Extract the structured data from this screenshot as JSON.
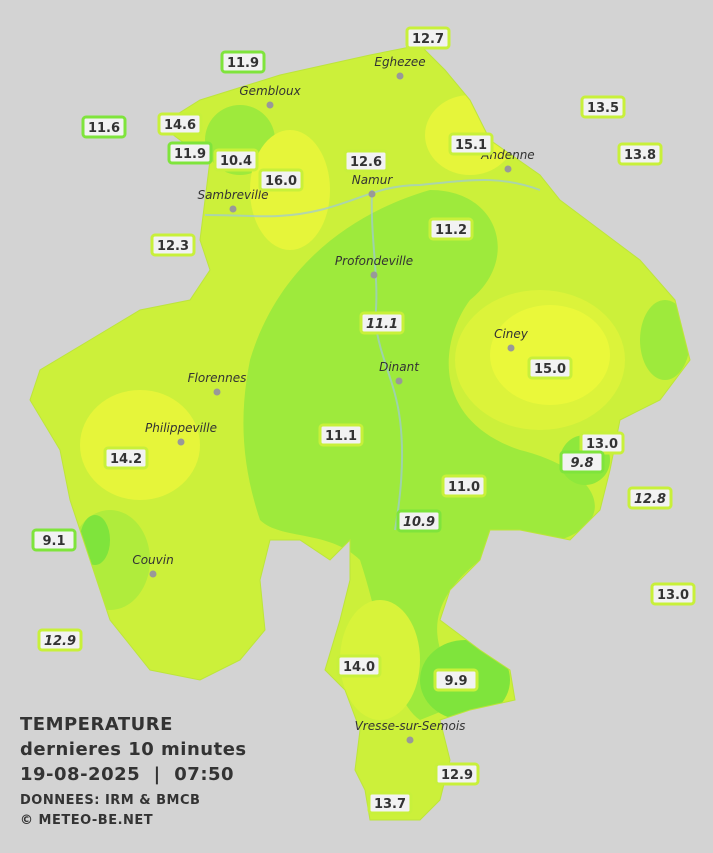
{
  "title": {
    "lines": [
      "TEMPERATURE",
      "dernieres 10 minutes",
      "19-08-2025  |  07:50"
    ],
    "credits": [
      "DONNEES: IRM & BMCB",
      "© METEO-BE.NET"
    ]
  },
  "cities": [
    "Eghezee",
    "Gembloux",
    "Andenne",
    "Namur",
    "Sambreville",
    "Profondeville",
    "Ciney",
    "Dinant",
    "Florennes",
    "Philippeville",
    "Couvin",
    "Vresse-sur-Semois"
  ],
  "stations": [
    {
      "label": "12.7"
    },
    {
      "label": "11.9"
    },
    {
      "label": "11.6"
    },
    {
      "label": "14.6"
    },
    {
      "label": "11.9"
    },
    {
      "label": "10.4"
    },
    {
      "label": "16.0"
    },
    {
      "label": "12.6"
    },
    {
      "label": "15.1"
    },
    {
      "label": "13.5"
    },
    {
      "label": "13.8"
    },
    {
      "label": "12.3"
    },
    {
      "label": "11.2"
    },
    {
      "label": "11.1",
      "italic": true
    },
    {
      "label": "15.0"
    },
    {
      "label": "11.1"
    },
    {
      "label": "14.2"
    },
    {
      "label": "13.0"
    },
    {
      "label": "9.8",
      "italic": true
    },
    {
      "label": "11.0"
    },
    {
      "label": "10.9",
      "italic": true
    },
    {
      "label": "12.8",
      "italic": true
    },
    {
      "label": "9.1"
    },
    {
      "label": "13.0"
    },
    {
      "label": "12.9",
      "italic": true
    },
    {
      "label": "14.0"
    },
    {
      "label": "9.9"
    },
    {
      "label": "12.9"
    },
    {
      "label": "13.7"
    }
  ]
}
